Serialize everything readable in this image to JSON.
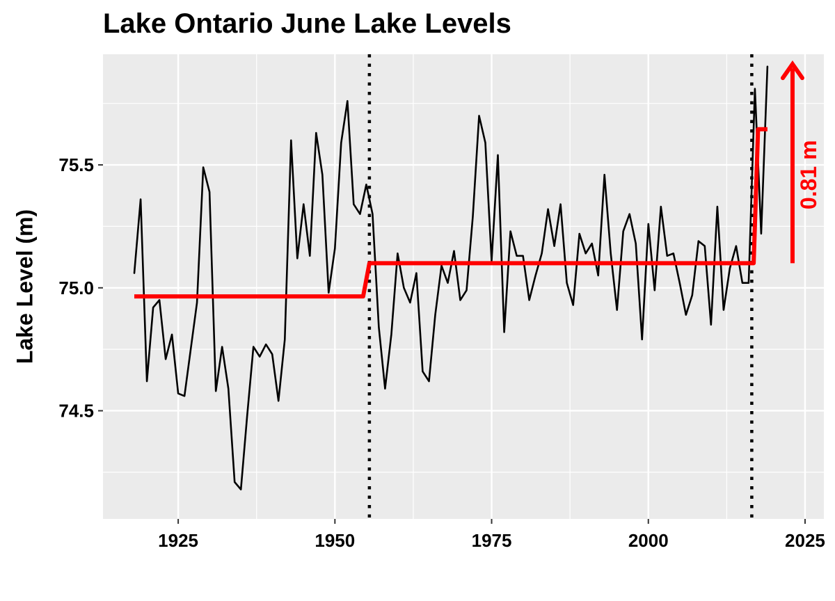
{
  "chart_data": {
    "type": "line",
    "title": "Lake Ontario June Lake Levels",
    "xlabel": "",
    "ylabel": "Lake Level (m)",
    "xlim": [
      1913,
      2028
    ],
    "ylim": [
      74.06,
      75.95
    ],
    "x_ticks": [
      1925,
      1950,
      1975,
      2000,
      2025
    ],
    "y_ticks": [
      74.5,
      75.0,
      75.5
    ],
    "grid": true,
    "background": "#EBEBEB",
    "series": [
      {
        "color": "#000000",
        "x": [
          1918,
          1919,
          1920,
          1921,
          1922,
          1923,
          1924,
          1925,
          1926,
          1927,
          1928,
          1929,
          1930,
          1931,
          1932,
          1933,
          1934,
          1935,
          1936,
          1937,
          1938,
          1939,
          1940,
          1941,
          1942,
          1943,
          1944,
          1945,
          1946,
          1947,
          1948,
          1949,
          1950,
          1951,
          1952,
          1953,
          1954,
          1955,
          1956,
          1957,
          1958,
          1959,
          1960,
          1961,
          1962,
          1963,
          1964,
          1965,
          1966,
          1967,
          1968,
          1969,
          1970,
          1971,
          1972,
          1973,
          1974,
          1975,
          1976,
          1977,
          1978,
          1979,
          1980,
          1981,
          1982,
          1983,
          1984,
          1985,
          1986,
          1987,
          1988,
          1989,
          1990,
          1991,
          1992,
          1993,
          1994,
          1995,
          1996,
          1997,
          1998,
          1999,
          2000,
          2001,
          2002,
          2003,
          2004,
          2005,
          2006,
          2007,
          2008,
          2009,
          2010,
          2011,
          2012,
          2013,
          2014,
          2015,
          2016,
          2017,
          2018,
          2019
        ],
        "y": [
          75.06,
          75.36,
          74.62,
          74.92,
          74.95,
          74.71,
          74.81,
          74.57,
          74.56,
          74.75,
          74.94,
          75.49,
          75.39,
          74.58,
          74.76,
          74.59,
          74.21,
          74.18,
          74.48,
          74.76,
          74.72,
          74.77,
          74.73,
          74.54,
          74.79,
          75.6,
          75.12,
          75.34,
          75.13,
          75.63,
          75.46,
          74.98,
          75.16,
          75.59,
          75.76,
          75.34,
          75.3,
          75.42,
          75.3,
          74.84,
          74.59,
          74.81,
          75.14,
          75.0,
          74.94,
          75.06,
          74.66,
          74.62,
          74.89,
          75.09,
          75.02,
          75.15,
          74.95,
          74.99,
          75.29,
          75.7,
          75.59,
          75.11,
          75.54,
          74.82,
          75.23,
          75.13,
          75.13,
          74.95,
          75.05,
          75.14,
          75.32,
          75.17,
          75.34,
          75.02,
          74.93,
          75.22,
          75.14,
          75.18,
          75.05,
          75.46,
          75.14,
          74.91,
          75.23,
          75.3,
          75.18,
          74.79,
          75.26,
          74.99,
          75.33,
          75.13,
          75.14,
          75.02,
          74.89,
          74.97,
          75.19,
          75.17,
          74.85,
          75.33,
          74.91,
          75.08,
          75.17,
          75.02,
          75.02,
          75.81,
          75.22,
          75.9
        ]
      },
      {
        "color": "#FF0000",
        "x": [
          1918,
          1954.5,
          1955.5,
          2016,
          2016.8,
          2017.5,
          2019
        ],
        "y": [
          74.965,
          74.965,
          75.1,
          75.1,
          75.1,
          75.645,
          75.645
        ]
      }
    ],
    "vlines": {
      "style": "dotted",
      "color": "#000000",
      "x": [
        1955.5,
        2016.5
      ]
    },
    "annotation": {
      "text": "0.81 m",
      "color": "#FF0000",
      "arrow": {
        "x": 2023,
        "y_from": 75.1,
        "y_to": 75.91
      }
    }
  }
}
